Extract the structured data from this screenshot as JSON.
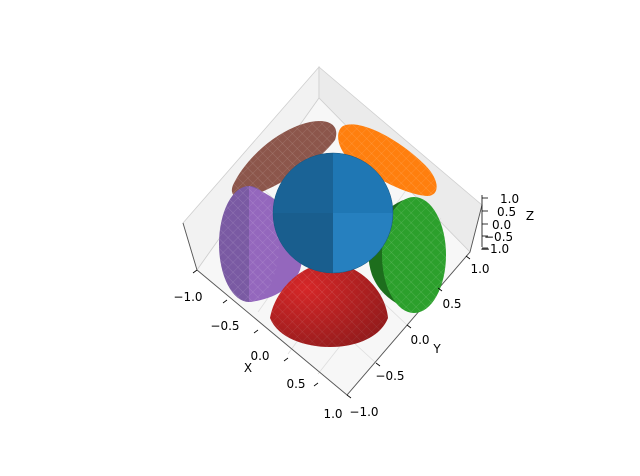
{
  "chart_data": {
    "type": "surface3d",
    "title": "",
    "xlabel": "X",
    "ylabel": "Y",
    "zlabel": "Z",
    "xlim": [
      -1.0,
      1.0
    ],
    "ylim": [
      -1.0,
      1.0
    ],
    "zlim": [
      -1.0,
      1.0
    ],
    "x_ticks": [
      "−1.0",
      "−0.5",
      "0.0",
      "0.5",
      "1.0"
    ],
    "y_ticks": [
      "−1.0",
      "−0.5",
      "0.0",
      "0.5",
      "1.0"
    ],
    "z_ticks": [
      "−1.0",
      "−0.5",
      "0.0",
      "0.5",
      "1.0"
    ],
    "view": {
      "elev": 90,
      "azim": -45
    },
    "grid": true,
    "series": [
      {
        "shape": "cone",
        "color": "#8c564b"
      },
      {
        "shape": "cone",
        "color": "#ff7f0e"
      },
      {
        "shape": "cone",
        "color": "#9467bd"
      },
      {
        "shape": "cone",
        "color": "#2ca02c"
      },
      {
        "shape": "cone",
        "color": "#d62728"
      },
      {
        "shape": "cone",
        "color": "#1f77b4"
      }
    ]
  }
}
